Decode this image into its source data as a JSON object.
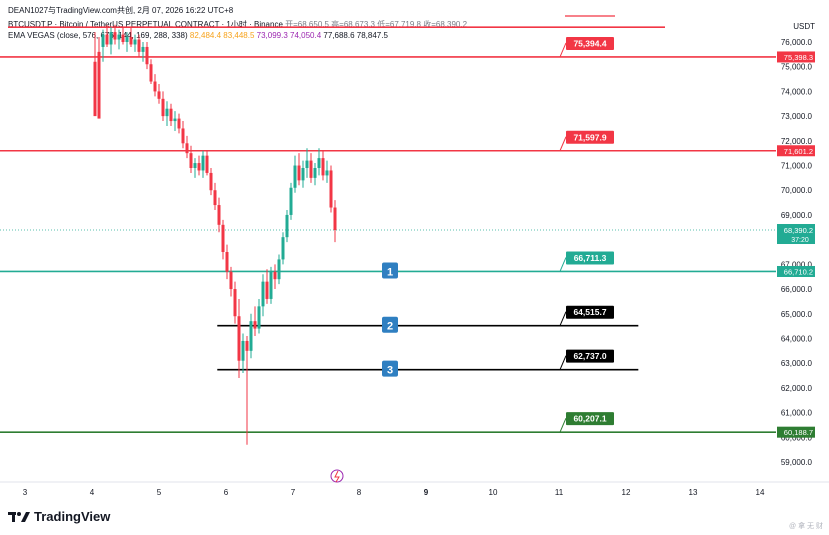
{
  "header": {
    "publisher": "DEAN1027与TradingView.com共创,  2月 07, 2026 16:22 UTC+8",
    "symbol_line": "BTCUSDT.P · Bitcoin / TetherUS PERPETUAL CONTRACT · 1小时 · Binance",
    "ohlc": "开=68,650.5  高=68,673.3  低=67,719.8  收=68,390.2",
    "indicator_name": "EMA VEGAS (close, 576, 676, 144, 169, 288, 338)",
    "indicator_values": [
      {
        "text": "82,484.4",
        "color": "#f7a21b"
      },
      {
        "text": "83,448.5",
        "color": "#f7a21b"
      },
      {
        "text": "73,099.3",
        "color": "#9c27b0"
      },
      {
        "text": "74,050.4",
        "color": "#9c27b0"
      },
      {
        "text": "77,688.6",
        "color": "#131722"
      },
      {
        "text": "78,847.5",
        "color": "#131722"
      }
    ]
  },
  "axis": {
    "currency": "USDT",
    "price_labels": [
      "76,000.0",
      "75,000.0",
      "74,000.0",
      "73,000.0",
      "72,000.0",
      "71,000.0",
      "70,000.0",
      "69,000.0",
      "68,000.0",
      "67,000.0",
      "66,000.0",
      "65,000.0",
      "64,000.0",
      "63,000.0",
      "62,000.0",
      "61,000.0",
      "60,000.0",
      "59,000.0"
    ],
    "price_values": [
      76000,
      75000,
      74000,
      73000,
      72000,
      71000,
      70000,
      69000,
      68000,
      67000,
      66000,
      65000,
      64000,
      63000,
      62000,
      61000,
      60000,
      59000
    ],
    "x_labels": [
      "3",
      "4",
      "5",
      "6",
      "7",
      "8",
      "9",
      "10",
      "11",
      "12",
      "13",
      "14"
    ],
    "x_bold": "9"
  },
  "levels": [
    {
      "name": "level-75394",
      "price": 75394.4,
      "label": "75,394.4",
      "axis_label": "75,398.3",
      "color": "#f23645",
      "line_x0": 0.0,
      "line_x1": 1.0,
      "box_x": 0.69
    },
    {
      "name": "level-71597",
      "price": 71597.9,
      "label": "71,597.9",
      "axis_label": "71,601.2",
      "color": "#f23645",
      "line_x0": 0.0,
      "line_x1": 1.0,
      "box_x": 0.69
    },
    {
      "name": "level-66711",
      "price": 66711.3,
      "label": "66,711.3",
      "axis_label": "66,710.2",
      "color": "#22ab94",
      "line_x0": 0.0,
      "line_x1": 1.0,
      "box_x": 0.69
    },
    {
      "name": "level-64515",
      "price": 64515.7,
      "label": "64,515.7",
      "axis_label": "",
      "color": "#000000",
      "line_x0": 0.28,
      "line_x1": 0.77,
      "box_x": 0.69
    },
    {
      "name": "level-62737",
      "price": 62737.0,
      "label": "62,737.0",
      "axis_label": "",
      "color": "#000000",
      "line_x0": 0.28,
      "line_x1": 0.77,
      "box_x": 0.69
    },
    {
      "name": "level-60207",
      "price": 60207.1,
      "label": "60,207.1",
      "axis_label": "60,188.7",
      "color": "#2e7d32",
      "line_x0": 0.0,
      "line_x1": 1.0,
      "box_x": 0.69
    }
  ],
  "current_price": {
    "value": 68390.2,
    "label": "68,390.2",
    "countdown": "37:20",
    "color": "#22ab94"
  },
  "markers": [
    {
      "text": "1",
      "price": 66711.3
    },
    {
      "text": "2",
      "price": 64515.7
    },
    {
      "text": "3",
      "price": 62737.0
    }
  ],
  "top_line_price": 76600,
  "brand": "TradingView",
  "watermark": "@ 拿 无 财"
}
